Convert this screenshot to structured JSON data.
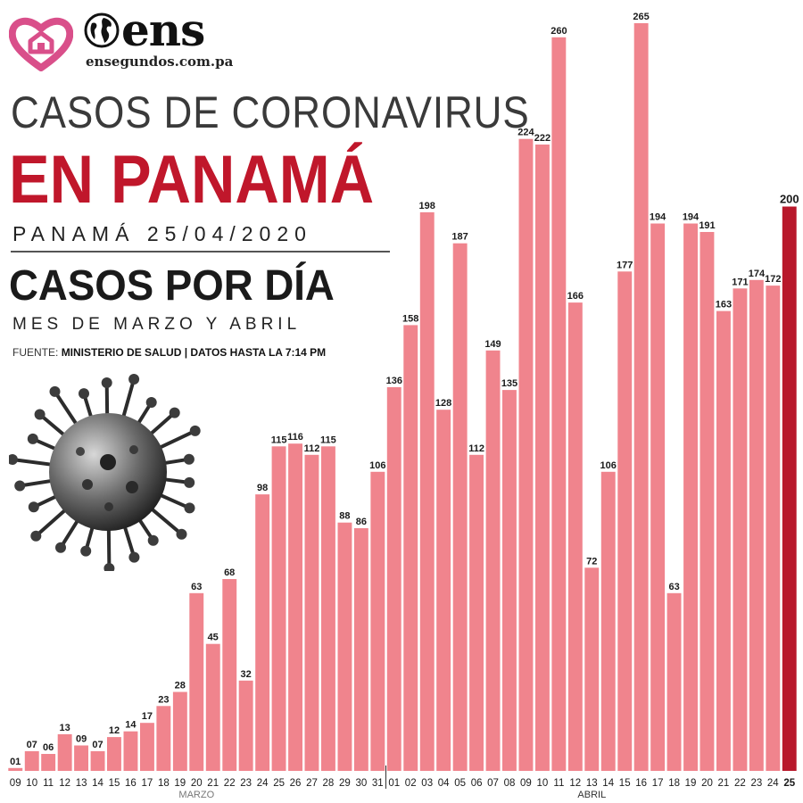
{
  "brand": {
    "name": "ens",
    "url": "ensegundos.com.pa"
  },
  "header": {
    "title_line1": "CASOS DE CORONAVIRUS",
    "title_line2": "EN PANAMÁ",
    "date_line": "PANAMÁ 25/04/2020",
    "subtitle": "CASOS POR DÍA",
    "subtitle2": "MES DE MARZO Y ABRIL",
    "source_label": "FUENTE:",
    "source_text": "MINISTERIO DE SALUD | DATOS HASTA LA 7:14 PM"
  },
  "colors": {
    "bar": "#f0848d",
    "bar_highlight": "#b8182b",
    "title_red": "#c0172b",
    "month_label": "#777777"
  },
  "chart_data": {
    "type": "bar",
    "title": "CASOS POR DÍA",
    "subtitle": "MES DE MARZO Y ABRIL",
    "xlabel": "",
    "ylabel": "",
    "months": [
      {
        "name": "MARZO",
        "start_index": 0,
        "end_index": 22
      },
      {
        "name": "ABRIL",
        "start_index": 23,
        "end_index": 47
      }
    ],
    "categories": [
      "09",
      "10",
      "11",
      "12",
      "13",
      "14",
      "15",
      "16",
      "17",
      "18",
      "19",
      "20",
      "21",
      "22",
      "23",
      "24",
      "25",
      "26",
      "27",
      "28",
      "29",
      "30",
      "31",
      "01",
      "02",
      "03",
      "04",
      "05",
      "06",
      "07",
      "08",
      "09",
      "10",
      "11",
      "12",
      "13",
      "14",
      "15",
      "16",
      "17",
      "18",
      "19",
      "20",
      "21",
      "22",
      "23",
      "24",
      "25"
    ],
    "value_labels": [
      "01",
      "07",
      "06",
      "13",
      "09",
      "07",
      "12",
      "14",
      "17",
      "23",
      "28",
      "63",
      "45",
      "68",
      "32",
      "98",
      "115",
      "116",
      "112",
      "115",
      "88",
      "86",
      "106",
      "136",
      "158",
      "198",
      "128",
      "187",
      "112",
      "149",
      "135",
      "224",
      "222",
      "260",
      "166",
      "72",
      "106",
      "177",
      "265",
      "194",
      "63",
      "194",
      "191",
      "163",
      "171",
      "174",
      "172",
      "200"
    ],
    "values": [
      1,
      7,
      6,
      13,
      9,
      7,
      12,
      14,
      17,
      23,
      28,
      63,
      45,
      68,
      32,
      98,
      115,
      116,
      112,
      115,
      88,
      86,
      106,
      136,
      158,
      198,
      128,
      187,
      112,
      149,
      135,
      224,
      222,
      260,
      166,
      72,
      106,
      177,
      265,
      194,
      63,
      194,
      191,
      163,
      171,
      174,
      172,
      200
    ],
    "highlight_index": 47,
    "ylim": [
      0,
      265
    ],
    "grid": false,
    "legend": "none"
  }
}
